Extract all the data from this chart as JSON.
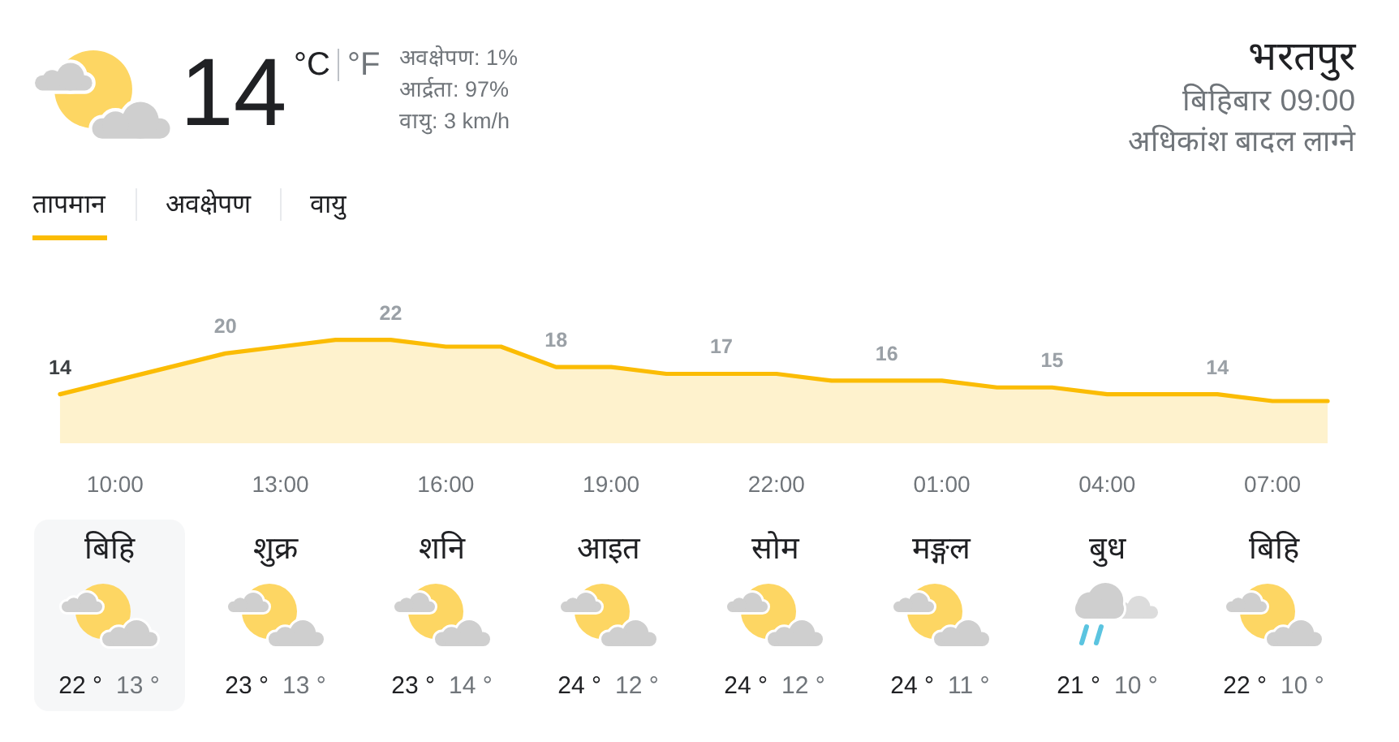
{
  "chart_data": [
    {
      "type": "other",
      "title": "भरतपुर",
      "subtitle": "बिहिबार 09:00",
      "annotations": [
        "14",
        "°C",
        "°F",
        "अवक्षेपण: 1%",
        "आर्द्रता: 97%",
        "वायु: 3 km/h",
        "अधिकांश बादल लाग्ने",
        "तापमान",
        "अवक्षेपण",
        "वायु"
      ]
    },
    {
      "type": "area",
      "categories": [
        null,
        "10:00",
        null,
        null,
        "13:00",
        null,
        null,
        "16:00",
        null,
        null,
        "19:00",
        null,
        null,
        "22:00",
        null,
        null,
        "01:00",
        null,
        null,
        "04:00",
        null,
        null,
        "07:00",
        null
      ],
      "values": [
        14,
        16,
        18,
        20,
        21,
        22,
        22,
        21,
        21,
        18,
        18,
        17,
        17,
        17,
        16,
        16,
        16,
        15,
        15,
        14,
        14,
        14,
        13,
        13
      ],
      "value_labels": [
        "14",
        null,
        null,
        "20",
        null,
        null,
        "22",
        null,
        null,
        "18",
        null,
        null,
        "17",
        null,
        null,
        "16",
        null,
        null,
        "15",
        null,
        null,
        "14",
        null,
        null
      ],
      "color": "#fbbc04",
      "tick_labels": "x"
    },
    {
      "type": "other",
      "categories": [
        "बिहि",
        "शुक्र",
        "शनि",
        "आइत",
        "सोम",
        "मङ्गल",
        "बुध",
        "बिहि"
      ],
      "annotations": [
        "22 °",
        "13 °",
        "23 °",
        "13 °",
        "23 °",
        "14 °",
        "24 °",
        "12 °",
        "24 °",
        "12 °",
        "24 °",
        "11 °",
        "21 °",
        "10 °",
        "22 °",
        "10 °"
      ]
    }
  ]
}
